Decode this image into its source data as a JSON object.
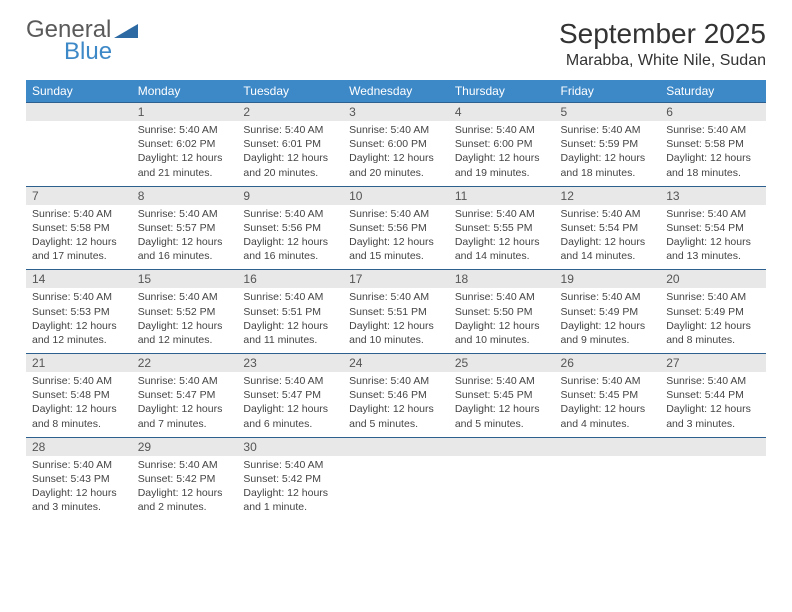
{
  "logo": {
    "word1": "General",
    "word2": "Blue",
    "tri_color": "#2d6aa3"
  },
  "title": {
    "month": "September 2025",
    "location": "Marabba, White Nile, Sudan"
  },
  "colors": {
    "header_bg": "#3d88c7",
    "header_text": "#ffffff",
    "numrow_bg": "#e8e8e8",
    "numrow_border": "#2d5f8f",
    "body_text": "#444444",
    "page_bg": "#ffffff"
  },
  "days": [
    "Sunday",
    "Monday",
    "Tuesday",
    "Wednesday",
    "Thursday",
    "Friday",
    "Saturday"
  ],
  "weeks": [
    {
      "nums": [
        "",
        "1",
        "2",
        "3",
        "4",
        "5",
        "6"
      ],
      "cells": [
        {
          "sunrise": "",
          "sunset": "",
          "daylight": ""
        },
        {
          "sunrise": "5:40 AM",
          "sunset": "6:02 PM",
          "daylight": "12 hours and 21 minutes."
        },
        {
          "sunrise": "5:40 AM",
          "sunset": "6:01 PM",
          "daylight": "12 hours and 20 minutes."
        },
        {
          "sunrise": "5:40 AM",
          "sunset": "6:00 PM",
          "daylight": "12 hours and 20 minutes."
        },
        {
          "sunrise": "5:40 AM",
          "sunset": "6:00 PM",
          "daylight": "12 hours and 19 minutes."
        },
        {
          "sunrise": "5:40 AM",
          "sunset": "5:59 PM",
          "daylight": "12 hours and 18 minutes."
        },
        {
          "sunrise": "5:40 AM",
          "sunset": "5:58 PM",
          "daylight": "12 hours and 18 minutes."
        }
      ]
    },
    {
      "nums": [
        "7",
        "8",
        "9",
        "10",
        "11",
        "12",
        "13"
      ],
      "cells": [
        {
          "sunrise": "5:40 AM",
          "sunset": "5:58 PM",
          "daylight": "12 hours and 17 minutes."
        },
        {
          "sunrise": "5:40 AM",
          "sunset": "5:57 PM",
          "daylight": "12 hours and 16 minutes."
        },
        {
          "sunrise": "5:40 AM",
          "sunset": "5:56 PM",
          "daylight": "12 hours and 16 minutes."
        },
        {
          "sunrise": "5:40 AM",
          "sunset": "5:56 PM",
          "daylight": "12 hours and 15 minutes."
        },
        {
          "sunrise": "5:40 AM",
          "sunset": "5:55 PM",
          "daylight": "12 hours and 14 minutes."
        },
        {
          "sunrise": "5:40 AM",
          "sunset": "5:54 PM",
          "daylight": "12 hours and 14 minutes."
        },
        {
          "sunrise": "5:40 AM",
          "sunset": "5:54 PM",
          "daylight": "12 hours and 13 minutes."
        }
      ]
    },
    {
      "nums": [
        "14",
        "15",
        "16",
        "17",
        "18",
        "19",
        "20"
      ],
      "cells": [
        {
          "sunrise": "5:40 AM",
          "sunset": "5:53 PM",
          "daylight": "12 hours and 12 minutes."
        },
        {
          "sunrise": "5:40 AM",
          "sunset": "5:52 PM",
          "daylight": "12 hours and 12 minutes."
        },
        {
          "sunrise": "5:40 AM",
          "sunset": "5:51 PM",
          "daylight": "12 hours and 11 minutes."
        },
        {
          "sunrise": "5:40 AM",
          "sunset": "5:51 PM",
          "daylight": "12 hours and 10 minutes."
        },
        {
          "sunrise": "5:40 AM",
          "sunset": "5:50 PM",
          "daylight": "12 hours and 10 minutes."
        },
        {
          "sunrise": "5:40 AM",
          "sunset": "5:49 PM",
          "daylight": "12 hours and 9 minutes."
        },
        {
          "sunrise": "5:40 AM",
          "sunset": "5:49 PM",
          "daylight": "12 hours and 8 minutes."
        }
      ]
    },
    {
      "nums": [
        "21",
        "22",
        "23",
        "24",
        "25",
        "26",
        "27"
      ],
      "cells": [
        {
          "sunrise": "5:40 AM",
          "sunset": "5:48 PM",
          "daylight": "12 hours and 8 minutes."
        },
        {
          "sunrise": "5:40 AM",
          "sunset": "5:47 PM",
          "daylight": "12 hours and 7 minutes."
        },
        {
          "sunrise": "5:40 AM",
          "sunset": "5:47 PM",
          "daylight": "12 hours and 6 minutes."
        },
        {
          "sunrise": "5:40 AM",
          "sunset": "5:46 PM",
          "daylight": "12 hours and 5 minutes."
        },
        {
          "sunrise": "5:40 AM",
          "sunset": "5:45 PM",
          "daylight": "12 hours and 5 minutes."
        },
        {
          "sunrise": "5:40 AM",
          "sunset": "5:45 PM",
          "daylight": "12 hours and 4 minutes."
        },
        {
          "sunrise": "5:40 AM",
          "sunset": "5:44 PM",
          "daylight": "12 hours and 3 minutes."
        }
      ]
    },
    {
      "nums": [
        "28",
        "29",
        "30",
        "",
        "",
        "",
        ""
      ],
      "cells": [
        {
          "sunrise": "5:40 AM",
          "sunset": "5:43 PM",
          "daylight": "12 hours and 3 minutes."
        },
        {
          "sunrise": "5:40 AM",
          "sunset": "5:42 PM",
          "daylight": "12 hours and 2 minutes."
        },
        {
          "sunrise": "5:40 AM",
          "sunset": "5:42 PM",
          "daylight": "12 hours and 1 minute."
        },
        {
          "sunrise": "",
          "sunset": "",
          "daylight": ""
        },
        {
          "sunrise": "",
          "sunset": "",
          "daylight": ""
        },
        {
          "sunrise": "",
          "sunset": "",
          "daylight": ""
        },
        {
          "sunrise": "",
          "sunset": "",
          "daylight": ""
        }
      ]
    }
  ],
  "labels": {
    "sunrise": "Sunrise:",
    "sunset": "Sunset:",
    "daylight": "Daylight:"
  }
}
